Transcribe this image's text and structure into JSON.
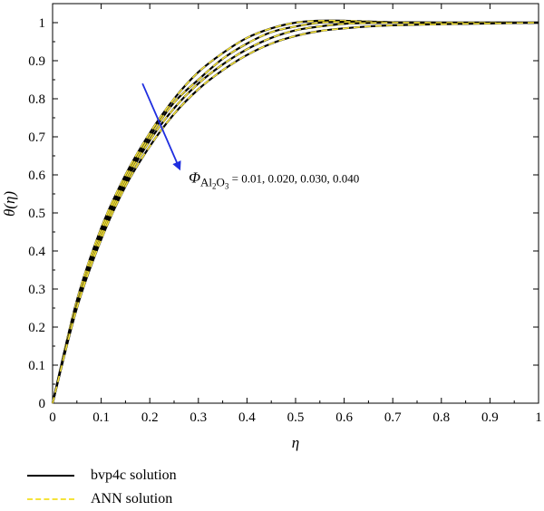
{
  "chart_data": {
    "type": "line",
    "xlabel": "η",
    "ylabel": "θ(η)",
    "xlim": [
      0,
      1
    ],
    "ylim": [
      0,
      1.05
    ],
    "xticks": [
      "0",
      "0.1",
      "0.2",
      "0.3",
      "0.4",
      "0.5",
      "0.6",
      "0.7",
      "0.8",
      "0.9",
      "1"
    ],
    "yticks": [
      "0",
      "0.1",
      "0.2",
      "0.3",
      "0.4",
      "0.5",
      "0.6",
      "0.7",
      "0.8",
      "0.9",
      "1"
    ],
    "x": [
      0,
      0.05,
      0.1,
      0.15,
      0.2,
      0.25,
      0.3,
      0.35,
      0.4,
      0.45,
      0.5,
      0.55,
      0.6,
      0.65,
      0.7,
      0.8,
      0.9,
      1.0
    ],
    "series": [
      {
        "name": "Φ = 0.01",
        "values": [
          0,
          0.27,
          0.46,
          0.6,
          0.71,
          0.8,
          0.87,
          0.92,
          0.96,
          0.985,
          1.0,
          1.005,
          1.005,
          1.003,
          1.001,
          1.0,
          1.0,
          1.0
        ]
      },
      {
        "name": "Φ = 0.020",
        "values": [
          0,
          0.26,
          0.45,
          0.59,
          0.7,
          0.79,
          0.85,
          0.905,
          0.945,
          0.975,
          0.99,
          1.0,
          1.002,
          1.002,
          1.001,
          1.0,
          1.0,
          1.0
        ]
      },
      {
        "name": "Φ = 0.030",
        "values": [
          0,
          0.255,
          0.44,
          0.58,
          0.69,
          0.775,
          0.84,
          0.89,
          0.93,
          0.96,
          0.98,
          0.99,
          0.997,
          0.999,
          1.0,
          1.0,
          1.0,
          1.0
        ]
      },
      {
        "name": "Φ = 0.040",
        "values": [
          0,
          0.25,
          0.43,
          0.57,
          0.675,
          0.76,
          0.825,
          0.875,
          0.915,
          0.945,
          0.965,
          0.978,
          0.985,
          0.99,
          0.993,
          0.996,
          0.998,
          1.0
        ]
      }
    ],
    "annotation": {
      "prefix": "Φ",
      "sub1": "Al",
      "sub2": "2",
      "sub3": "O",
      "sub4": "3",
      "values_text": " = 0.01, 0.020, 0.030, 0.040",
      "arrow_from": [
        0.185,
        0.84
      ],
      "arrow_to": [
        0.26,
        0.62
      ],
      "text_at": [
        0.28,
        0.58
      ]
    },
    "colors": {
      "bvp4c": "#000000",
      "ann": "#f5e33a",
      "arrow": "#1f2ee0"
    },
    "legend": {
      "position": "bottom-left",
      "items": [
        "bvp4c solution",
        "ANN solution"
      ]
    }
  }
}
